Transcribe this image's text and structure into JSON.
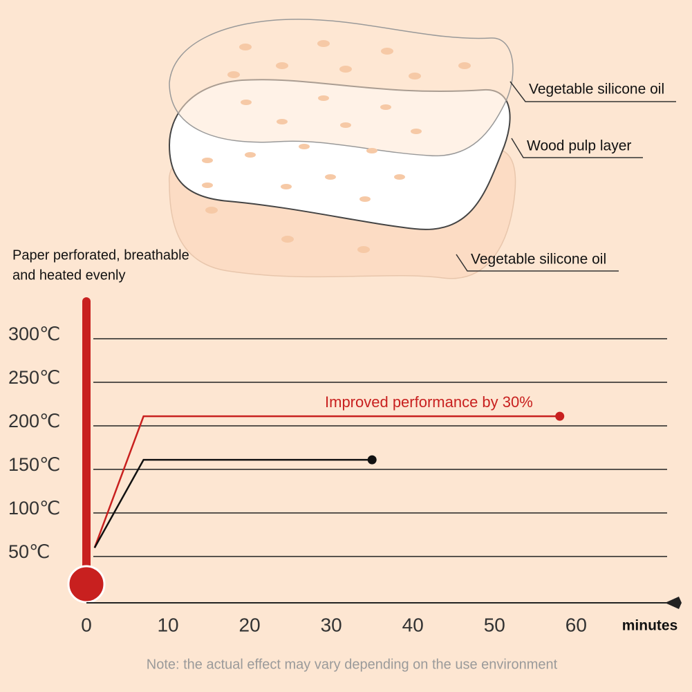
{
  "layers": [
    "Vegetable silicone oil",
    "Wood pulp layer",
    "Vegetable silicone oil"
  ],
  "intro": [
    "Paper perforated, breathable",
    "and heated evenly"
  ],
  "note": "Note: the actual effect may vary depending on the use environment",
  "chart_data": {
    "type": "line",
    "x_label": "minutes",
    "annotation": "Improved performance by 30%",
    "xlim": [
      0,
      72
    ],
    "xticks": [
      0,
      10,
      20,
      30,
      40,
      50,
      60
    ],
    "ylim": [
      0,
      350
    ],
    "yticks": [
      {
        "value": 50,
        "label": "50℃"
      },
      {
        "value": 100,
        "label": "100℃"
      },
      {
        "value": 150,
        "label": "150℃"
      },
      {
        "value": 200,
        "label": "200℃"
      },
      {
        "value": 250,
        "label": "250℃"
      },
      {
        "value": 300,
        "label": "300℃"
      }
    ],
    "grid": true,
    "series": [
      {
        "color": "#c8201f",
        "x": [
          1,
          7,
          58
        ],
        "values": [
          60,
          211,
          211
        ]
      },
      {
        "color": "#111111",
        "x": [
          1,
          7,
          35
        ],
        "values": [
          60,
          161,
          161
        ]
      }
    ]
  }
}
